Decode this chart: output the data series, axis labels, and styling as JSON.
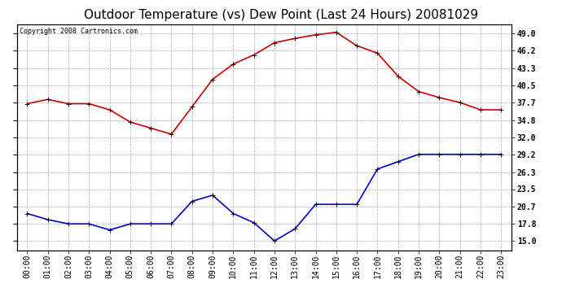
{
  "title": "Outdoor Temperature (vs) Dew Point (Last 24 Hours) 20081029",
  "copyright": "Copyright 2008 Cartronics.com",
  "hours": [
    "00:00",
    "01:00",
    "02:00",
    "03:00",
    "04:00",
    "05:00",
    "06:00",
    "07:00",
    "08:00",
    "09:00",
    "10:00",
    "11:00",
    "12:00",
    "13:00",
    "14:00",
    "15:00",
    "16:00",
    "17:00",
    "18:00",
    "19:00",
    "20:00",
    "21:00",
    "22:00",
    "23:00"
  ],
  "temp": [
    37.5,
    38.2,
    37.5,
    37.5,
    36.5,
    34.5,
    33.5,
    32.5,
    37.0,
    41.5,
    44.0,
    45.5,
    47.5,
    48.2,
    48.8,
    49.2,
    47.0,
    45.8,
    42.0,
    39.5,
    38.5,
    37.7,
    36.5,
    36.5
  ],
  "dew": [
    19.5,
    18.5,
    17.8,
    17.8,
    16.8,
    17.8,
    17.8,
    17.8,
    21.5,
    22.5,
    19.5,
    18.0,
    15.0,
    17.0,
    21.0,
    21.0,
    21.0,
    26.8,
    28.0,
    29.2,
    29.2,
    29.2,
    29.2,
    29.2
  ],
  "temp_color": "#cc0000",
  "dew_color": "#0000cc",
  "bg_color": "#ffffff",
  "grid_color": "#aaaaaa",
  "yticks": [
    15.0,
    17.8,
    20.7,
    23.5,
    26.3,
    29.2,
    32.0,
    34.8,
    37.7,
    40.5,
    43.3,
    46.2,
    49.0
  ],
  "ylim": [
    13.5,
    50.5
  ],
  "title_fontsize": 11,
  "copyright_fontsize": 6,
  "tick_fontsize": 7,
  "marker": "+",
  "marker_size": 5,
  "line_width": 1.2
}
